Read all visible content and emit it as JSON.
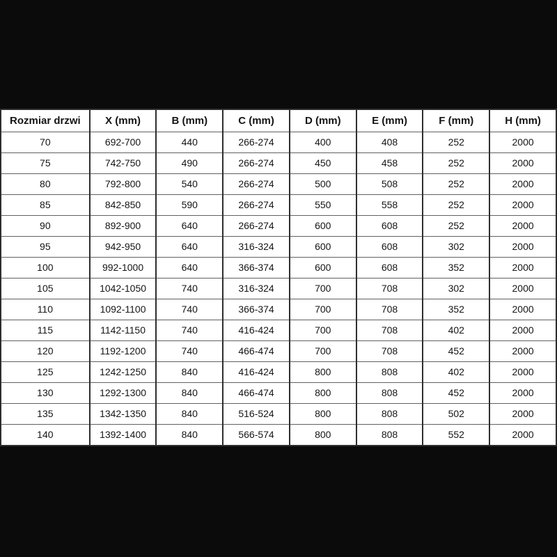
{
  "colors": {
    "page_background": "#0b0b0b",
    "cell_background": "#ffffff",
    "text": "#151515",
    "horizontal_border": "#606060",
    "vertical_border": "#2e2e2e"
  },
  "chart_data": {
    "type": "table",
    "title": "",
    "columns": [
      "Rozmiar drzwi",
      "X (mm)",
      "B (mm)",
      "C (mm)",
      "D (mm)",
      "E (mm)",
      "F (mm)",
      "H (mm)"
    ],
    "rows": [
      [
        "70",
        "692-700",
        "440",
        "266-274",
        "400",
        "408",
        "252",
        "2000"
      ],
      [
        "75",
        "742-750",
        "490",
        "266-274",
        "450",
        "458",
        "252",
        "2000"
      ],
      [
        "80",
        "792-800",
        "540",
        "266-274",
        "500",
        "508",
        "252",
        "2000"
      ],
      [
        "85",
        "842-850",
        "590",
        "266-274",
        "550",
        "558",
        "252",
        "2000"
      ],
      [
        "90",
        "892-900",
        "640",
        "266-274",
        "600",
        "608",
        "252",
        "2000"
      ],
      [
        "95",
        "942-950",
        "640",
        "316-324",
        "600",
        "608",
        "302",
        "2000"
      ],
      [
        "100",
        "992-1000",
        "640",
        "366-374",
        "600",
        "608",
        "352",
        "2000"
      ],
      [
        "105",
        "1042-1050",
        "740",
        "316-324",
        "700",
        "708",
        "302",
        "2000"
      ],
      [
        "110",
        "1092-1100",
        "740",
        "366-374",
        "700",
        "708",
        "352",
        "2000"
      ],
      [
        "115",
        "1142-1150",
        "740",
        "416-424",
        "700",
        "708",
        "402",
        "2000"
      ],
      [
        "120",
        "1192-1200",
        "740",
        "466-474",
        "700",
        "708",
        "452",
        "2000"
      ],
      [
        "125",
        "1242-1250",
        "840",
        "416-424",
        "800",
        "808",
        "402",
        "2000"
      ],
      [
        "130",
        "1292-1300",
        "840",
        "466-474",
        "800",
        "808",
        "452",
        "2000"
      ],
      [
        "135",
        "1342-1350",
        "840",
        "516-524",
        "800",
        "808",
        "502",
        "2000"
      ],
      [
        "140",
        "1392-1400",
        "840",
        "566-574",
        "800",
        "808",
        "552",
        "2000"
      ]
    ]
  }
}
